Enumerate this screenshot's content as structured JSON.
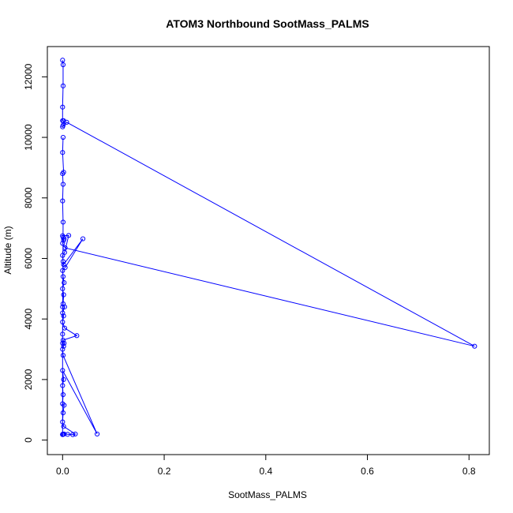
{
  "chart_data": {
    "type": "line",
    "title": "ATOM3 Northbound SootMass_PALMS",
    "xlabel": "SootMass_PALMS",
    "ylabel": "Altitude (m)",
    "xlim": [
      -0.03,
      0.84
    ],
    "ylim": [
      -480,
      13000
    ],
    "xticks": [
      "0.0",
      "0.2",
      "0.4",
      "0.6",
      "0.8"
    ],
    "yticks": [
      "0",
      "2000",
      "4000",
      "6000",
      "8000",
      "10000",
      "12000"
    ],
    "series_color": "#0000ff",
    "marker": "open-circle",
    "series": [
      {
        "name": "",
        "points": [
          [
            0.0,
            12550
          ],
          [
            0.001,
            12400
          ],
          [
            0.001,
            11700
          ],
          [
            0.0,
            11000
          ],
          [
            0.0,
            10550
          ],
          [
            0.002,
            10550
          ],
          [
            0.001,
            10400
          ],
          [
            0.0,
            10350
          ],
          [
            0.008,
            10500
          ],
          [
            0.811,
            3100
          ],
          [
            0.005,
            6350
          ],
          [
            0.0,
            6500
          ],
          [
            0.002,
            6600
          ],
          [
            0.003,
            6650
          ],
          [
            0.001,
            6700
          ],
          [
            0.0,
            6750
          ],
          [
            0.012,
            6760
          ],
          [
            0.004,
            6200
          ],
          [
            0.0,
            6100
          ],
          [
            0.001,
            5900
          ],
          [
            0.002,
            5800
          ],
          [
            0.04,
            6650
          ],
          [
            0.005,
            5700
          ],
          [
            0.0,
            5600
          ],
          [
            0.001,
            5400
          ],
          [
            0.003,
            5200
          ],
          [
            0.0,
            5000
          ],
          [
            0.002,
            4800
          ],
          [
            0.001,
            4500
          ],
          [
            0.0,
            4400
          ],
          [
            0.004,
            4400
          ],
          [
            0.0,
            4200
          ],
          [
            0.002,
            4100
          ],
          [
            0.0,
            3900
          ],
          [
            0.004,
            3700
          ],
          [
            0.028,
            3450
          ],
          [
            0.001,
            3300
          ],
          [
            0.0,
            3200
          ],
          [
            0.003,
            3200
          ],
          [
            0.002,
            3100
          ],
          [
            0.0,
            3000
          ],
          [
            0.001,
            2800
          ],
          [
            0.068,
            200
          ],
          [
            0.0,
            2300
          ],
          [
            0.002,
            2000
          ],
          [
            0.0,
            1800
          ],
          [
            0.001,
            1500
          ],
          [
            0.0,
            1200
          ],
          [
            0.003,
            1150
          ],
          [
            0.001,
            900
          ],
          [
            0.0,
            600
          ],
          [
            0.002,
            450
          ],
          [
            0.025,
            200
          ],
          [
            0.02,
            180
          ],
          [
            0.01,
            190
          ],
          [
            0.003,
            200
          ],
          [
            0.001,
            190
          ],
          [
            0.0,
            190
          ],
          [
            0.001,
            200
          ],
          [
            0.0,
            180
          ],
          [
            0.0,
            3500
          ],
          [
            0.001,
            7200
          ],
          [
            0.0,
            7900
          ],
          [
            0.001,
            8450
          ],
          [
            0.0,
            8800
          ],
          [
            0.002,
            8850
          ],
          [
            0.0,
            9500
          ],
          [
            0.001,
            10000
          ]
        ]
      }
    ],
    "grid": false,
    "legend": "none"
  }
}
